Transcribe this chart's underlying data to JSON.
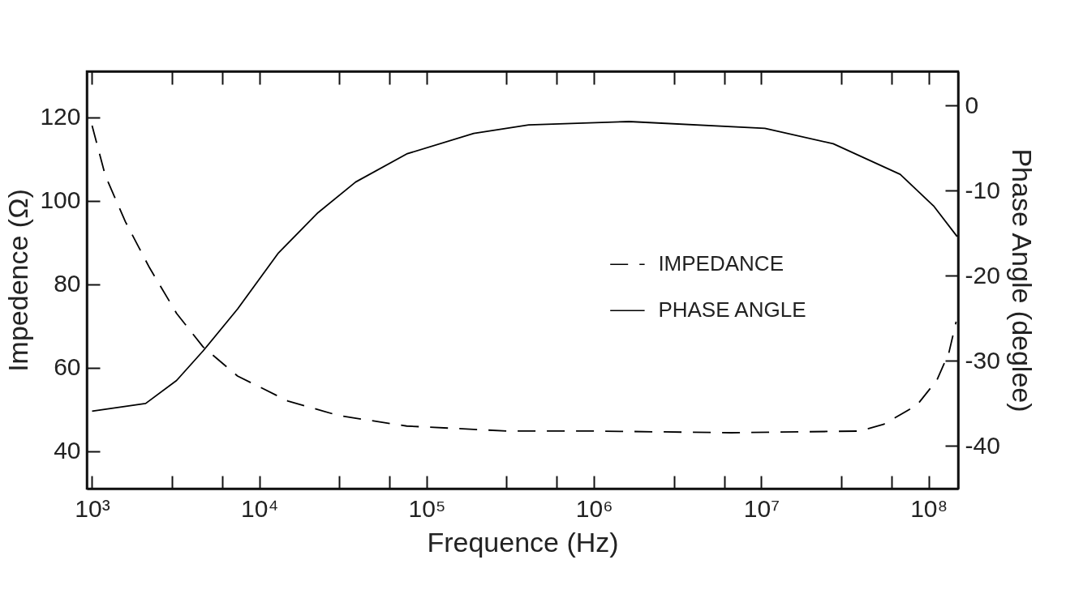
{
  "chart_data": {
    "type": "line",
    "xlabel": "Frequence (Hz)",
    "ylabel": "Impedence (Ω)",
    "y2label": "Phase Angle (deglee)",
    "log": "x",
    "legend": "right",
    "grid": false,
    "xlim": [
      930,
      150000000
    ],
    "xticks": [
      {
        "value": 1000,
        "label": "10³"
      },
      {
        "value": 3000,
        "label": null
      },
      {
        "value": 6000,
        "label": null
      },
      {
        "value": 10000,
        "label": "10⁴"
      },
      {
        "value": 30000,
        "label": null
      },
      {
        "value": 60000,
        "label": null
      },
      {
        "value": 100000,
        "label": "10⁵"
      },
      {
        "value": 300000,
        "label": null
      },
      {
        "value": 600000,
        "label": null
      },
      {
        "value": 1000000,
        "label": "10⁶"
      },
      {
        "value": 3000000,
        "label": null
      },
      {
        "value": 6000000,
        "label": null
      },
      {
        "value": 10000000,
        "label": "10⁷"
      },
      {
        "value": 30000000,
        "label": null
      },
      {
        "value": 60000000,
        "label": null
      },
      {
        "value": 100000000,
        "label": "10⁸"
      }
    ],
    "ylim": [
      31,
      131
    ],
    "yticks": [
      40,
      60,
      80,
      100,
      120
    ],
    "y2lim": [
      -45,
      4
    ],
    "y2ticks": [
      -40,
      -30,
      -20,
      -10,
      0
    ],
    "series": [
      {
        "name": "IMPEDANCE",
        "color": "#000000",
        "line_style": "dashed",
        "axis": "y",
        "x": [
          1000,
          1200,
          1580,
          2200,
          3200,
          4600,
          7400,
          14800,
          29900,
          76000,
          305000,
          1020000,
          6600000,
          38900000,
          53700000,
          85100000,
          112000000,
          132000000,
          146000000
        ],
        "values": [
          118,
          106,
          95,
          84,
          73,
          65,
          58,
          52,
          48.5,
          46,
          44.8,
          44.8,
          44.4,
          44.8,
          46.4,
          51,
          57,
          63.5,
          71
        ]
      },
      {
        "name": "PHASE ANGLE",
        "color": "#000000",
        "line_style": "solid",
        "axis": "y2",
        "x": [
          1000,
          2090,
          3200,
          4620,
          7410,
          12900,
          22400,
          37600,
          75900,
          191000,
          407000,
          1620000,
          10500000,
          26900000,
          67600000,
          107000000,
          148000000
        ],
        "values": [
          -35.9,
          -35,
          -32.3,
          -28.8,
          -23.9,
          -17.4,
          -12.6,
          -9,
          -5.7,
          -3.3,
          -2.3,
          -1.9,
          -2.7,
          -4.5,
          -8.1,
          -11.8,
          -15.4
        ]
      }
    ]
  }
}
